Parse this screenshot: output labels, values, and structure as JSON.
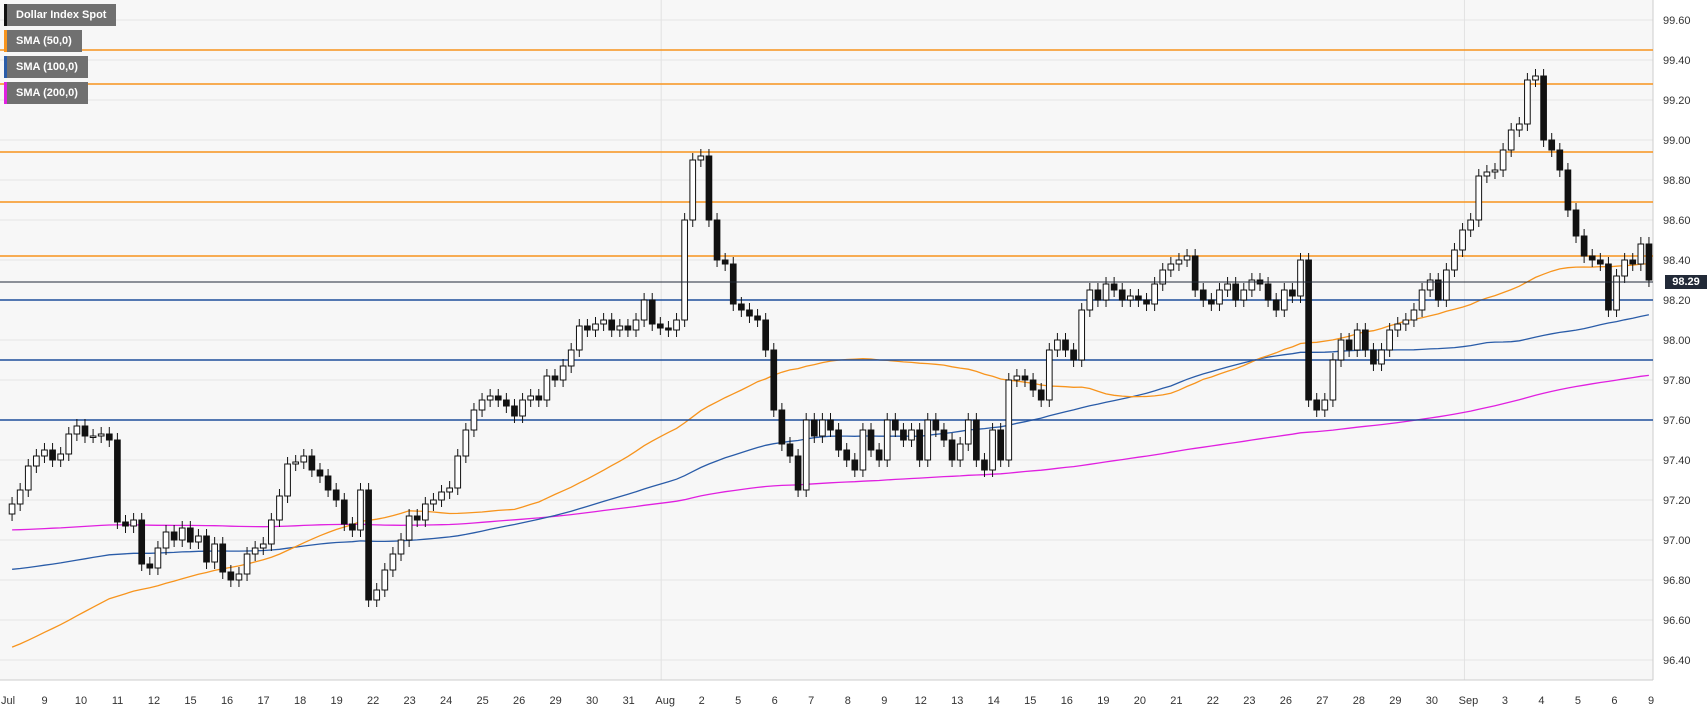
{
  "chart_data": {
    "type": "candlestick",
    "title": "Dollar Index Spot",
    "ylim": [
      96.3,
      99.7
    ],
    "yticks": [
      "99.60",
      "99.40",
      "99.20",
      "99.00",
      "98.80",
      "98.60",
      "98.40",
      "98.20",
      "98.00",
      "97.80",
      "97.60",
      "97.40",
      "97.20",
      "97.00",
      "96.80",
      "96.60",
      "96.40"
    ],
    "x_labels": [
      "Jul",
      "9",
      "10",
      "11",
      "12",
      "15",
      "16",
      "17",
      "18",
      "19",
      "22",
      "23",
      "24",
      "25",
      "26",
      "29",
      "30",
      "31",
      "Aug",
      "2",
      "5",
      "6",
      "7",
      "8",
      "9",
      "12",
      "13",
      "14",
      "15",
      "16",
      "19",
      "20",
      "21",
      "22",
      "23",
      "26",
      "27",
      "28",
      "29",
      "30",
      "Sep",
      "3",
      "4",
      "5",
      "6",
      "9"
    ],
    "last_price": "98.29",
    "legend": [
      {
        "name": "Dollar Index Spot",
        "color": "#111111"
      },
      {
        "name": "SMA (50,0)",
        "color": "#f7941d"
      },
      {
        "name": "SMA (100,0)",
        "color": "#2a5ca8"
      },
      {
        "name": "SMA (200,0)",
        "color": "#e020e0"
      }
    ],
    "horizontal_levels": [
      {
        "value": 99.45,
        "color": "#f7941d"
      },
      {
        "value": 99.28,
        "color": "#f7941d"
      },
      {
        "value": 98.94,
        "color": "#f7941d"
      },
      {
        "value": 98.69,
        "color": "#f7941d"
      },
      {
        "value": 98.42,
        "color": "#f7941d"
      },
      {
        "value": 98.2,
        "color": "#1f4e9c"
      },
      {
        "value": 97.9,
        "color": "#1f4e9c"
      },
      {
        "value": 97.6,
        "color": "#1f4e9c"
      }
    ],
    "closes": [
      97.18,
      97.25,
      97.37,
      97.42,
      97.45,
      97.4,
      97.43,
      97.53,
      97.57,
      97.52,
      97.52,
      97.53,
      97.5,
      97.09,
      97.07,
      97.1,
      96.88,
      96.86,
      96.96,
      97.04,
      97.0,
      97.06,
      96.99,
      97.02,
      96.89,
      96.98,
      96.84,
      96.8,
      96.83,
      96.93,
      96.96,
      96.98,
      97.1,
      97.22,
      97.38,
      97.39,
      97.42,
      97.35,
      97.32,
      97.25,
      97.2,
      97.08,
      97.05,
      97.25,
      96.7,
      96.75,
      96.85,
      96.93,
      97.0,
      97.12,
      97.1,
      97.18,
      97.2,
      97.24,
      97.26,
      97.42,
      97.55,
      97.65,
      97.7,
      97.72,
      97.7,
      97.67,
      97.62,
      97.7,
      97.72,
      97.7,
      97.82,
      97.8,
      97.87,
      97.95,
      98.07,
      98.05,
      98.08,
      98.1,
      98.05,
      98.07,
      98.05,
      98.1,
      98.2,
      98.08,
      98.06,
      98.05,
      98.1,
      98.6,
      98.9,
      98.92,
      98.6,
      98.4,
      98.38,
      98.18,
      98.15,
      98.12,
      98.1,
      97.95,
      97.65,
      97.48,
      97.42,
      97.25,
      97.6,
      97.52,
      97.6,
      97.55,
      97.45,
      97.4,
      97.35,
      97.55,
      97.45,
      97.4,
      97.6,
      97.55,
      97.5,
      97.55,
      97.4,
      97.6,
      97.55,
      97.5,
      97.4,
      97.48,
      97.6,
      97.4,
      97.35,
      97.55,
      97.4,
      97.8,
      97.82,
      97.8,
      97.75,
      97.7,
      97.95,
      98.0,
      97.95,
      97.9,
      98.15,
      98.25,
      98.2,
      98.28,
      98.25,
      98.2,
      98.22,
      98.2,
      98.18,
      98.28,
      98.35,
      98.38,
      98.4,
      98.42,
      98.25,
      98.2,
      98.18,
      98.25,
      98.28,
      98.2,
      98.25,
      98.3,
      98.28,
      98.2,
      98.15,
      98.25,
      98.22,
      98.4,
      97.7,
      97.65,
      97.7,
      97.9,
      98.0,
      97.95,
      98.05,
      97.95,
      97.88,
      97.95,
      98.05,
      98.08,
      98.1,
      98.15,
      98.25,
      98.3,
      98.2,
      98.35,
      98.45,
      98.55,
      98.6,
      98.82,
      98.84,
      98.85,
      98.95,
      99.05,
      99.08,
      99.3,
      99.32,
      99.0,
      98.95,
      98.85,
      98.65,
      98.52,
      98.42,
      98.4,
      98.38,
      98.15,
      98.32,
      98.4,
      98.38,
      98.48,
      98.3
    ]
  }
}
